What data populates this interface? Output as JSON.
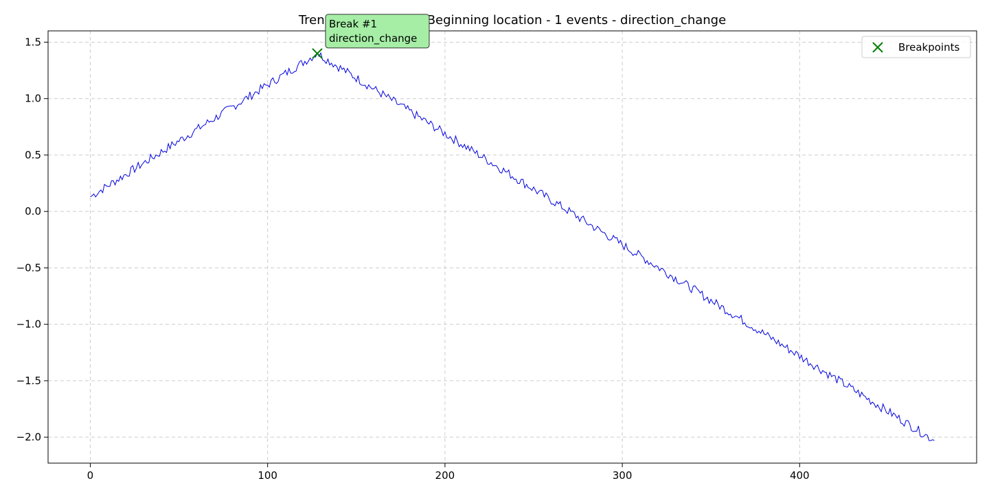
{
  "chart_data": {
    "type": "line",
    "title": "Trend Shift (single) - Beginning location - 1 events - direction_change",
    "xlabel": "",
    "ylabel": "",
    "xlim": [
      -23.8,
      499.8
    ],
    "ylim": [
      -2.23,
      1.6
    ],
    "x_ticks": [
      0,
      100,
      200,
      300,
      400
    ],
    "x_tick_labels": [
      "0",
      "100",
      "200",
      "300",
      "400"
    ],
    "y_ticks": [
      1.5,
      1.0,
      0.5,
      0.0,
      -0.5,
      -1.0,
      -1.5,
      -2.0
    ],
    "y_tick_labels": [
      "1.5",
      "1.0",
      "0.5",
      "0.0",
      "−0.5",
      "−1.0",
      "−1.5",
      "−2.0"
    ],
    "grid": true,
    "legend_position": "top-right",
    "series": [
      {
        "color": "#0000dd",
        "trend": {
          "breakpoint_x": 128,
          "start": [
            0,
            0.13
          ],
          "peak": [
            128,
            1.4
          ],
          "end": [
            476,
            -2.03
          ]
        },
        "noise_amplitude": 0.025
      }
    ],
    "breakpoints": {
      "legend_label": "Breakpoints",
      "marker": "x",
      "color": "#008000",
      "points": [
        {
          "x": 128,
          "y": 1.4
        }
      ]
    },
    "annotations": [
      {
        "line1": "Break #1",
        "line2": "direction_change",
        "x": 128,
        "y": 1.4,
        "box_color": "#a6eea6"
      }
    ]
  }
}
